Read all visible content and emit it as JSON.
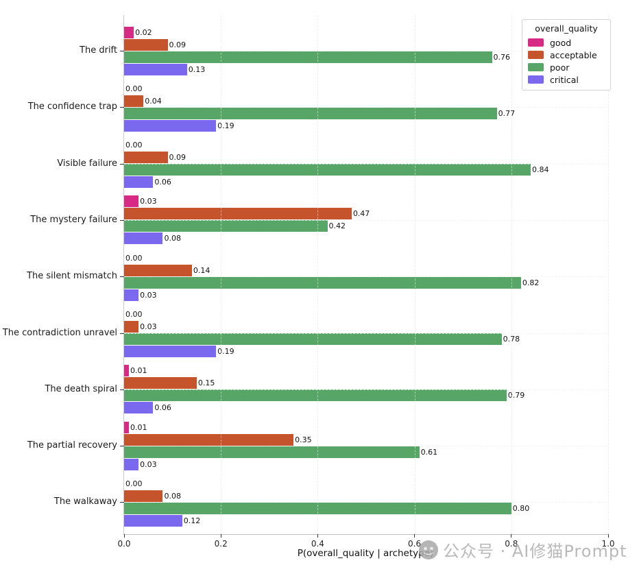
{
  "watermark": {
    "text": "公众号 · AI修猫Prompt",
    "icon": "wechat-logo-icon",
    "color": "#b9b9b9"
  },
  "chart_data": {
    "type": "bar",
    "orientation": "horizontal",
    "title": "",
    "xlabel": "P(overall_quality | archetype)",
    "ylabel": "",
    "legend_title": "overall_quality",
    "legend_position": "upper right",
    "grid": true,
    "grid_style": "dashed",
    "xlim": [
      0.0,
      1.0
    ],
    "xticks": [
      {
        "value": 0.0,
        "label": "0.0"
      },
      {
        "value": 0.2,
        "label": "0.2"
      },
      {
        "value": 0.4,
        "label": "0.4"
      },
      {
        "value": 0.6,
        "label": "0.6"
      },
      {
        "value": 0.8,
        "label": "0.8"
      },
      {
        "value": 1.0,
        "label": "1.0"
      }
    ],
    "categories": [
      "The drift",
      "The confidence trap",
      "Visible failure",
      "The mystery failure",
      "The silent mismatch",
      "The contradiction unravel",
      "The death spiral",
      "The partial recovery",
      "The walkaway"
    ],
    "series": [
      {
        "name": "good",
        "color": "#d62a84",
        "values": [
          0.02,
          0.0,
          0.0,
          0.03,
          0.0,
          0.0,
          0.01,
          0.01,
          0.0
        ]
      },
      {
        "name": "acceptable",
        "color": "#c5532b",
        "values": [
          0.09,
          0.04,
          0.09,
          0.47,
          0.14,
          0.03,
          0.15,
          0.35,
          0.08
        ]
      },
      {
        "name": "poor",
        "color": "#57a567",
        "values": [
          0.76,
          0.77,
          0.84,
          0.42,
          0.82,
          0.78,
          0.79,
          0.61,
          0.8
        ]
      },
      {
        "name": "critical",
        "color": "#7a68ee",
        "values": [
          0.13,
          0.19,
          0.06,
          0.08,
          0.03,
          0.19,
          0.06,
          0.03,
          0.12
        ]
      }
    ]
  }
}
